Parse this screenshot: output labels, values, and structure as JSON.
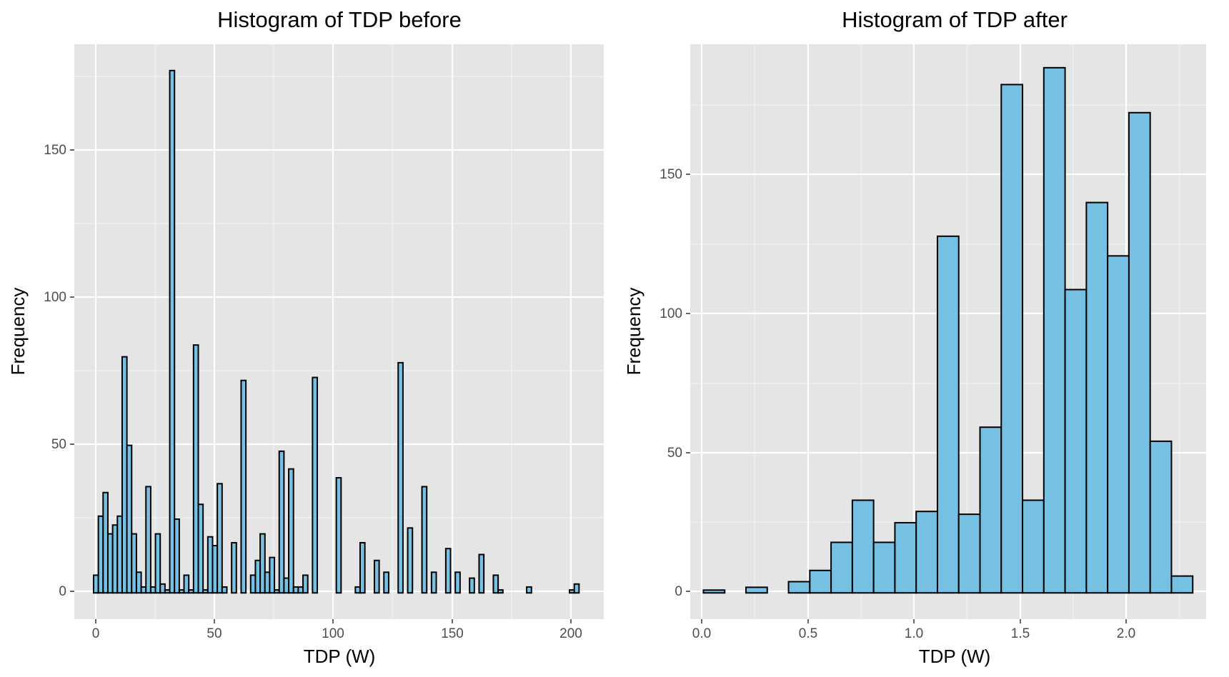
{
  "colors": {
    "panel_background": "#e5e5e5",
    "grid_major": "#ffffff",
    "grid_minor": "#f2f2f2",
    "bar_fill": "#76c1e3",
    "bar_outline": "#000000",
    "tick_mark": "#333333"
  },
  "chart_data": [
    {
      "type": "bar",
      "subtype": "histogram",
      "title": "Histogram of TDP before",
      "xlabel": "TDP (W)",
      "ylabel": "Frequency",
      "xlim": [
        -7.1,
        215.4
      ],
      "ylim": [
        -8.9,
        185.9
      ],
      "xticks": [
        0,
        50,
        100,
        150,
        200
      ],
      "xtick_labels": [
        "0",
        "50",
        "100",
        "150",
        "200"
      ],
      "yticks": [
        0,
        50,
        100,
        150
      ],
      "ytick_labels": [
        "0",
        "50",
        "100",
        "150"
      ],
      "grid": true,
      "legend": "none",
      "bin_width": 2,
      "bins": [
        {
          "x": 2,
          "count": 6
        },
        {
          "x": 4,
          "count": 26
        },
        {
          "x": 6,
          "count": 34
        },
        {
          "x": 8,
          "count": 20
        },
        {
          "x": 10,
          "count": 23
        },
        {
          "x": 12,
          "count": 26
        },
        {
          "x": 14,
          "count": 80
        },
        {
          "x": 16,
          "count": 50
        },
        {
          "x": 18,
          "count": 20
        },
        {
          "x": 20,
          "count": 7
        },
        {
          "x": 22,
          "count": 2
        },
        {
          "x": 24,
          "count": 36
        },
        {
          "x": 26,
          "count": 2
        },
        {
          "x": 28,
          "count": 20
        },
        {
          "x": 30,
          "count": 3
        },
        {
          "x": 32,
          "count": 1
        },
        {
          "x": 34,
          "count": 177
        },
        {
          "x": 36,
          "count": 25
        },
        {
          "x": 38,
          "count": 1
        },
        {
          "x": 40,
          "count": 6
        },
        {
          "x": 42,
          "count": 1
        },
        {
          "x": 44,
          "count": 84
        },
        {
          "x": 46,
          "count": 30
        },
        {
          "x": 48,
          "count": 1
        },
        {
          "x": 50,
          "count": 19
        },
        {
          "x": 52,
          "count": 16
        },
        {
          "x": 54,
          "count": 37
        },
        {
          "x": 56,
          "count": 2
        },
        {
          "x": 58,
          "count": 0
        },
        {
          "x": 60,
          "count": 17
        },
        {
          "x": 62,
          "count": 0
        },
        {
          "x": 64,
          "count": 72
        },
        {
          "x": 66,
          "count": 0
        },
        {
          "x": 68,
          "count": 6
        },
        {
          "x": 70,
          "count": 11
        },
        {
          "x": 72,
          "count": 20
        },
        {
          "x": 74,
          "count": 7
        },
        {
          "x": 76,
          "count": 12
        },
        {
          "x": 78,
          "count": 1
        },
        {
          "x": 80,
          "count": 48
        },
        {
          "x": 82,
          "count": 5
        },
        {
          "x": 84,
          "count": 42
        },
        {
          "x": 86,
          "count": 2
        },
        {
          "x": 88,
          "count": 2
        },
        {
          "x": 90,
          "count": 6
        },
        {
          "x": 92,
          "count": 0
        },
        {
          "x": 94,
          "count": 73
        },
        {
          "x": 96,
          "count": 0
        },
        {
          "x": 98,
          "count": 0
        },
        {
          "x": 100,
          "count": 0
        },
        {
          "x": 102,
          "count": 0
        },
        {
          "x": 104,
          "count": 39
        },
        {
          "x": 106,
          "count": 0
        },
        {
          "x": 108,
          "count": 0
        },
        {
          "x": 110,
          "count": 0
        },
        {
          "x": 112,
          "count": 2
        },
        {
          "x": 114,
          "count": 17
        },
        {
          "x": 116,
          "count": 0
        },
        {
          "x": 118,
          "count": 0
        },
        {
          "x": 120,
          "count": 11
        },
        {
          "x": 122,
          "count": 0
        },
        {
          "x": 124,
          "count": 7
        },
        {
          "x": 126,
          "count": 0
        },
        {
          "x": 128,
          "count": 0
        },
        {
          "x": 130,
          "count": 78
        },
        {
          "x": 132,
          "count": 0
        },
        {
          "x": 134,
          "count": 22
        },
        {
          "x": 136,
          "count": 0
        },
        {
          "x": 138,
          "count": 0
        },
        {
          "x": 140,
          "count": 36
        },
        {
          "x": 142,
          "count": 0
        },
        {
          "x": 144,
          "count": 7
        },
        {
          "x": 146,
          "count": 0
        },
        {
          "x": 148,
          "count": 0
        },
        {
          "x": 150,
          "count": 15
        },
        {
          "x": 152,
          "count": 0
        },
        {
          "x": 154,
          "count": 7
        },
        {
          "x": 156,
          "count": 0
        },
        {
          "x": 158,
          "count": 0
        },
        {
          "x": 160,
          "count": 5
        },
        {
          "x": 162,
          "count": 0
        },
        {
          "x": 164,
          "count": 13
        },
        {
          "x": 166,
          "count": 0
        },
        {
          "x": 168,
          "count": 0
        },
        {
          "x": 170,
          "count": 6
        },
        {
          "x": 172,
          "count": 1
        },
        {
          "x": 174,
          "count": 0
        },
        {
          "x": 176,
          "count": 0
        },
        {
          "x": 178,
          "count": 0
        },
        {
          "x": 180,
          "count": 0
        },
        {
          "x": 182,
          "count": 0
        },
        {
          "x": 184,
          "count": 2
        },
        {
          "x": 186,
          "count": 0
        },
        {
          "x": 188,
          "count": 0
        },
        {
          "x": 190,
          "count": 0
        },
        {
          "x": 192,
          "count": 0
        },
        {
          "x": 194,
          "count": 0
        },
        {
          "x": 196,
          "count": 0
        },
        {
          "x": 198,
          "count": 0
        },
        {
          "x": 200,
          "count": 0
        },
        {
          "x": 202,
          "count": 1
        },
        {
          "x": 204,
          "count": 3
        }
      ]
    },
    {
      "type": "bar",
      "subtype": "histogram",
      "title": "Histogram of TDP after",
      "xlabel": "TDP (W)",
      "ylabel": "Frequency",
      "xlim": [
        -0.012,
        2.413
      ],
      "ylim": [
        -9.35,
        195.35
      ],
      "xticks": [
        0.0,
        0.5,
        1.0,
        1.5,
        2.0
      ],
      "xtick_labels": [
        "0.0",
        "0.5",
        "1.0",
        "1.5",
        "2.0"
      ],
      "yticks": [
        0,
        50,
        100,
        150
      ],
      "ytick_labels": [
        "0",
        "50",
        "100",
        "150"
      ],
      "grid": true,
      "legend": "none",
      "bin_width": 0.1,
      "bins": [
        {
          "x": 0.1,
          "count": 1
        },
        {
          "x": 0.2,
          "count": 0
        },
        {
          "x": 0.3,
          "count": 2
        },
        {
          "x": 0.4,
          "count": 0
        },
        {
          "x": 0.5,
          "count": 4
        },
        {
          "x": 0.6,
          "count": 8
        },
        {
          "x": 0.7,
          "count": 18
        },
        {
          "x": 0.8,
          "count": 33
        },
        {
          "x": 0.9,
          "count": 18
        },
        {
          "x": 1.0,
          "count": 25
        },
        {
          "x": 1.1,
          "count": 29
        },
        {
          "x": 1.2,
          "count": 127
        },
        {
          "x": 1.3,
          "count": 28
        },
        {
          "x": 1.4,
          "count": 59
        },
        {
          "x": 1.5,
          "count": 181
        },
        {
          "x": 1.6,
          "count": 33
        },
        {
          "x": 1.7,
          "count": 187
        },
        {
          "x": 1.8,
          "count": 108
        },
        {
          "x": 1.9,
          "count": 139
        },
        {
          "x": 2.0,
          "count": 120
        },
        {
          "x": 2.1,
          "count": 171
        },
        {
          "x": 2.2,
          "count": 54
        },
        {
          "x": 2.3,
          "count": 6
        }
      ]
    }
  ]
}
